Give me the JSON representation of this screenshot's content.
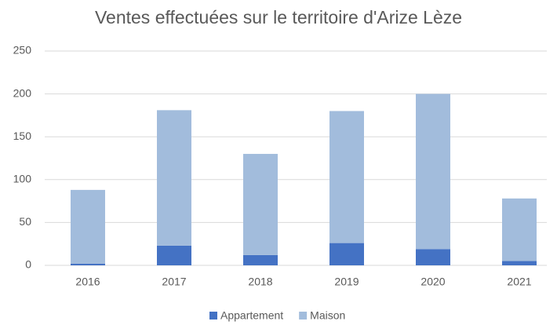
{
  "chart_data": {
    "type": "bar",
    "stacked": true,
    "title": "Ventes effectuées sur le territoire d'Arize Lèze",
    "categories": [
      "2016",
      "2017",
      "2018",
      "2019",
      "2020",
      "2021"
    ],
    "series": [
      {
        "name": "Appartement",
        "color": "#4472c4",
        "values": [
          2,
          23,
          12,
          26,
          19,
          5
        ]
      },
      {
        "name": "Maison",
        "color": "#a2bcdc",
        "values": [
          86,
          158,
          118,
          154,
          181,
          73
        ]
      }
    ],
    "ylim": [
      0,
      250
    ],
    "yticks": [
      0,
      50,
      100,
      150,
      200,
      250
    ],
    "grid": true,
    "legend": "bottom"
  }
}
